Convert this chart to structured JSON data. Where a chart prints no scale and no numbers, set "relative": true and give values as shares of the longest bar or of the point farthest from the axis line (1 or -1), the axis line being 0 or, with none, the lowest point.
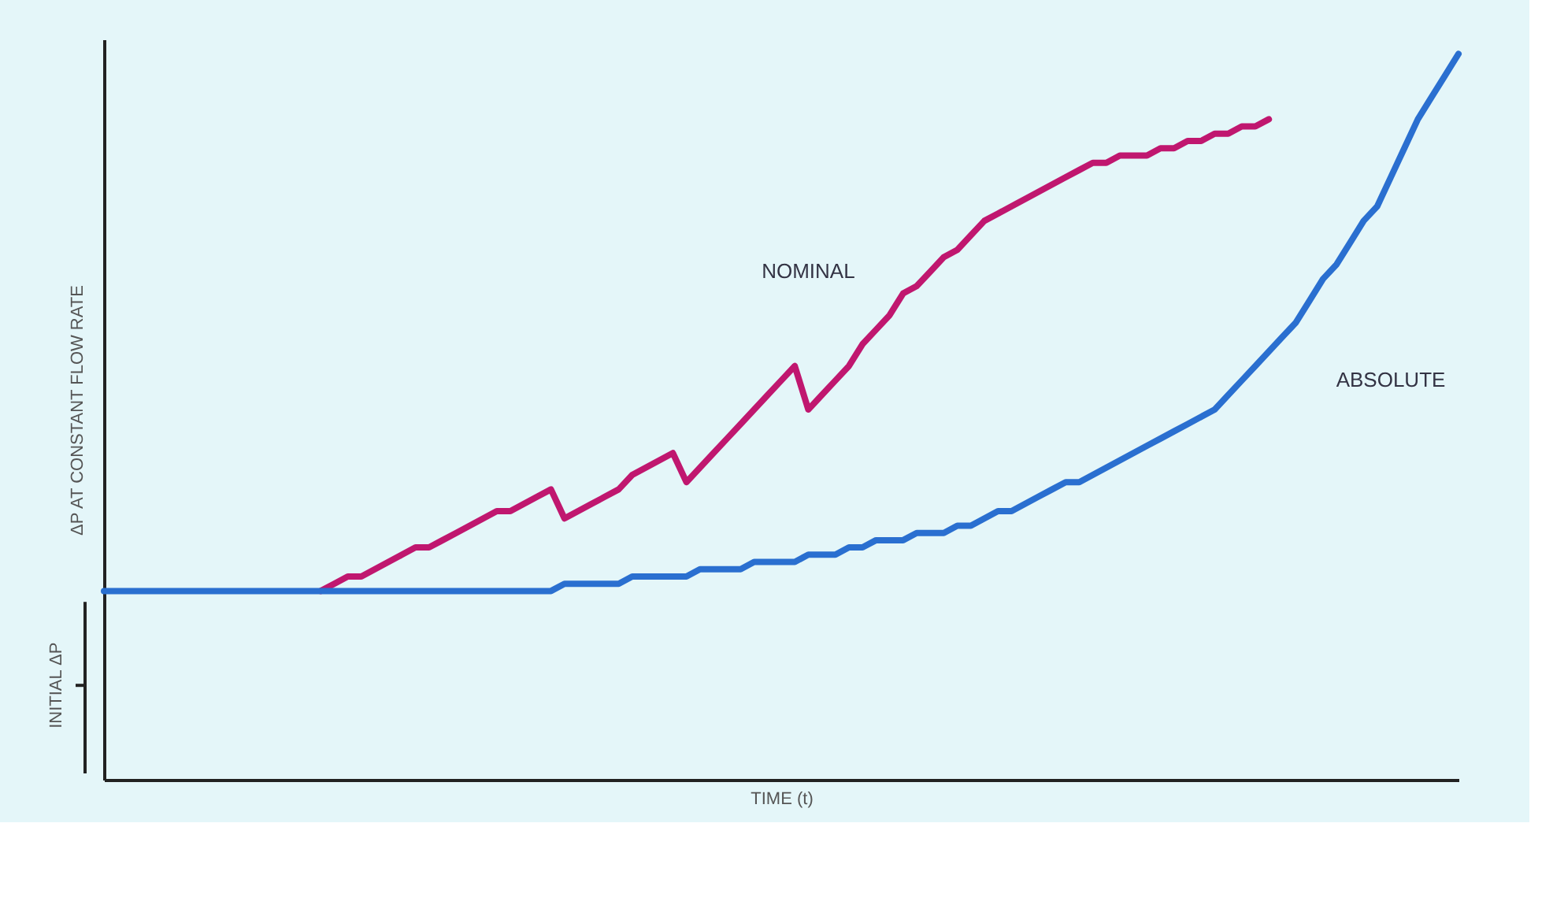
{
  "chart_data": {
    "type": "line",
    "relative": true,
    "xlabel": "TIME (t)",
    "ylabel": "ΔP AT CONSTANT FLOW RATE",
    "line_style": "solid",
    "annotations": [
      "INITIAL ΔP"
    ],
    "categories": [
      null,
      null,
      null,
      null,
      null,
      null,
      null,
      null,
      null,
      null,
      null,
      null,
      null,
      null,
      null,
      null,
      null,
      null,
      null,
      null,
      null,
      null,
      null,
      null,
      null,
      null,
      null,
      null,
      null,
      null,
      null,
      null,
      null,
      null,
      null,
      null,
      null,
      null,
      null,
      null,
      null,
      null,
      null,
      null,
      null,
      null,
      null,
      null,
      null,
      null,
      null,
      null,
      null,
      null,
      null,
      null,
      null,
      null,
      null,
      null,
      null,
      null,
      null,
      null,
      null,
      null,
      null,
      null,
      null,
      null,
      null,
      null,
      null,
      null,
      null,
      null,
      null,
      null,
      null,
      null,
      null,
      null,
      null,
      null,
      null,
      null,
      null,
      null,
      null,
      null,
      null,
      null,
      null,
      null,
      null,
      null,
      null,
      null,
      null,
      null,
      null
    ],
    "series": [
      {
        "name": "NOMINAL",
        "color": "#c0176f",
        "values": [
          null,
          null,
          null,
          null,
          null,
          null,
          null,
          null,
          null,
          null,
          null,
          null,
          null,
          null,
          null,
          null,
          0.26,
          0.27,
          0.28,
          0.28,
          0.29,
          0.3,
          0.31,
          0.32,
          0.32,
          0.33,
          0.34,
          0.35,
          0.36,
          0.37,
          0.37,
          0.38,
          0.39,
          0.4,
          0.36,
          0.37,
          0.38,
          0.39,
          0.4,
          0.42,
          0.43,
          0.44,
          0.45,
          0.41,
          0.43,
          0.45,
          0.47,
          0.49,
          0.51,
          0.53,
          0.55,
          0.57,
          0.51,
          0.53,
          0.55,
          0.57,
          0.6,
          0.62,
          0.64,
          0.67,
          0.68,
          0.7,
          0.72,
          0.73,
          0.75,
          0.77,
          0.78,
          0.79,
          0.8,
          0.81,
          0.82,
          0.83,
          0.84,
          0.85,
          0.85,
          0.86,
          0.86,
          0.86,
          0.87,
          0.87,
          0.88,
          0.88,
          0.89,
          0.89,
          0.9,
          0.9,
          0.91,
          null,
          null,
          null,
          null,
          null,
          null,
          null,
          null,
          null,
          null,
          null,
          null,
          null,
          null
        ]
      },
      {
        "name": "ABSOLUTE",
        "color": "#2a6fd0",
        "values": [
          0.26,
          0.26,
          0.26,
          0.26,
          0.26,
          0.26,
          0.26,
          0.26,
          0.26,
          0.26,
          0.26,
          0.26,
          0.26,
          0.26,
          0.26,
          0.26,
          0.26,
          0.26,
          0.26,
          0.26,
          0.26,
          0.26,
          0.26,
          0.26,
          0.26,
          0.26,
          0.26,
          0.26,
          0.26,
          0.26,
          0.26,
          0.26,
          0.26,
          0.26,
          0.27,
          0.27,
          0.27,
          0.27,
          0.27,
          0.28,
          0.28,
          0.28,
          0.28,
          0.28,
          0.29,
          0.29,
          0.29,
          0.29,
          0.3,
          0.3,
          0.3,
          0.3,
          0.31,
          0.31,
          0.31,
          0.32,
          0.32,
          0.33,
          0.33,
          0.33,
          0.34,
          0.34,
          0.34,
          0.35,
          0.35,
          0.36,
          0.37,
          0.37,
          0.38,
          0.39,
          0.4,
          0.41,
          0.41,
          0.42,
          0.43,
          0.44,
          0.45,
          0.46,
          0.47,
          0.48,
          0.49,
          0.5,
          0.51,
          0.53,
          0.55,
          0.57,
          0.59,
          0.61,
          0.63,
          0.66,
          0.69,
          0.71,
          0.74,
          0.77,
          0.79,
          0.83,
          0.87,
          0.91,
          0.94,
          0.97,
          1.0
        ]
      }
    ]
  }
}
